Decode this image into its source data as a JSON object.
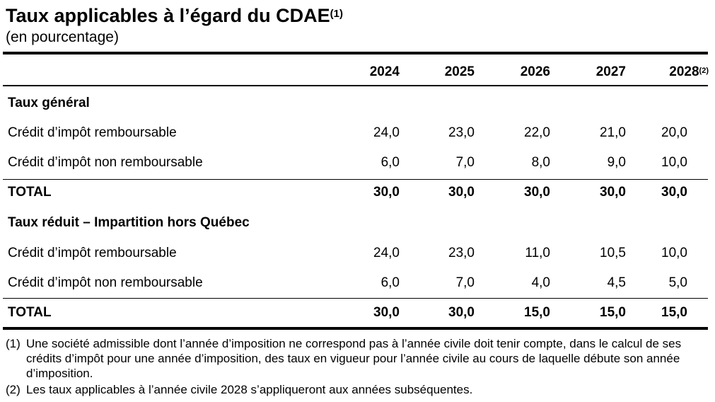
{
  "title": {
    "text": "Taux applicables à l’égard du CDAE",
    "note_ref": "(1)"
  },
  "subtitle": "(en pourcentage)",
  "table": {
    "columns": [
      {
        "year": "2024",
        "note_ref": ""
      },
      {
        "year": "2025",
        "note_ref": ""
      },
      {
        "year": "2026",
        "note_ref": ""
      },
      {
        "year": "2027",
        "note_ref": ""
      },
      {
        "year": "2028",
        "note_ref": "(2)"
      }
    ],
    "sections": [
      {
        "heading": "Taux général",
        "rows": [
          {
            "label": "Crédit d’impôt remboursable",
            "values": [
              "24,0",
              "23,0",
              "22,0",
              "21,0",
              "20,0"
            ]
          },
          {
            "label": "Crédit d’impôt non remboursable",
            "values": [
              "6,0",
              "7,0",
              "8,0",
              "9,0",
              "10,0"
            ]
          }
        ],
        "total": {
          "label": "TOTAL",
          "values": [
            "30,0",
            "30,0",
            "30,0",
            "30,0",
            "30,0"
          ]
        }
      },
      {
        "heading": "Taux réduit – Impartition hors Québec",
        "rows": [
          {
            "label": "Crédit d’impôt remboursable",
            "values": [
              "24,0",
              "23,0",
              "11,0",
              "10,5",
              "10,0"
            ]
          },
          {
            "label": "Crédit d’impôt non remboursable",
            "values": [
              "6,0",
              "7,0",
              "4,0",
              "4,5",
              "5,0"
            ]
          }
        ],
        "total": {
          "label": "TOTAL",
          "values": [
            "30,0",
            "30,0",
            "15,0",
            "15,0",
            "15,0"
          ]
        }
      }
    ]
  },
  "notes": [
    {
      "marker": "(1)",
      "text": "Une société admissible dont l’année d’imposition ne correspond pas à l’année civile doit tenir compte, dans le calcul de ses crédits d’impôt pour une année d’imposition, des taux en vigueur pour l’année civile au cours de laquelle débute son année d’imposition."
    },
    {
      "marker": "(2)",
      "text": "Les taux applicables à l’année civile 2028 s’appliqueront aux années subséquentes."
    }
  ]
}
